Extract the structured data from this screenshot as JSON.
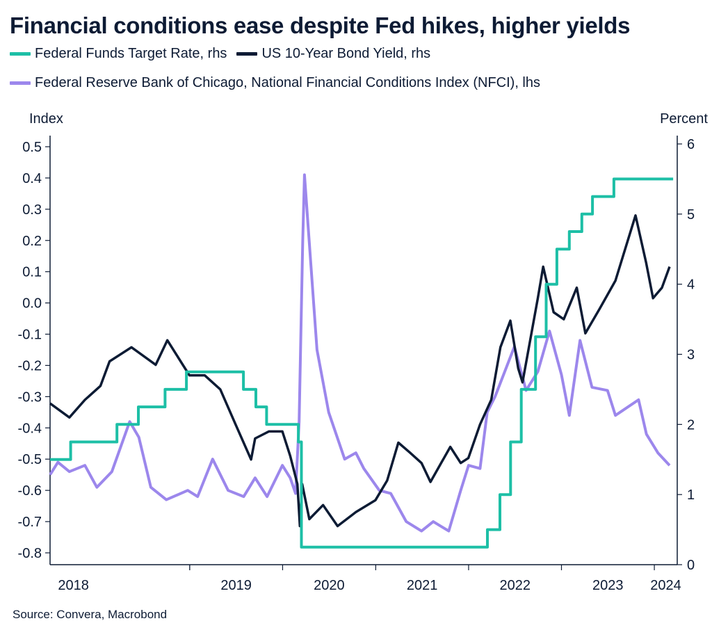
{
  "header": {
    "title": "Financial conditions ease despite Fed hikes, higher yields"
  },
  "footer": {
    "source": "Source: Convera, Macrobond"
  },
  "colors": {
    "fed_funds": "#1dbfa6",
    "us10y": "#0d1b34",
    "nfci": "#9c87ec",
    "text": "#0d1b34"
  },
  "chart_data": {
    "type": "line",
    "title": "Financial conditions ease despite Fed hikes, higher yields",
    "legend_position": "top-left",
    "grid": false,
    "x_axis": {
      "min": "2017-07-01",
      "max": "2024-03-31",
      "tick_labels": [
        "2018",
        "2019",
        "2020",
        "2021",
        "2022",
        "2023",
        "2024"
      ],
      "tick_label_dates": [
        "2018-01-01",
        "2019-01-01",
        "2020-01-01",
        "2021-01-01",
        "2022-01-01",
        "2023-01-01",
        "2024-01-01"
      ]
    },
    "left_axis": {
      "label": "Index",
      "min": -0.8,
      "max": 0.5,
      "ticks": [
        "0.5",
        "0.4",
        "0.3",
        "0.2",
        "0.1",
        "0.0",
        "-0.1",
        "-0.2",
        "-0.3",
        "-0.4",
        "-0.5",
        "-0.6",
        "-0.7",
        "-0.8"
      ]
    },
    "right_axis": {
      "label": "Percent",
      "min": 0,
      "max": 6,
      "ticks": [
        "6",
        "5",
        "4",
        "3",
        "2",
        "1",
        "0"
      ]
    },
    "series": [
      {
        "name": "Federal Funds Target Rate, rhs",
        "axis": "right",
        "step": true,
        "x": [
          "2017-07-01",
          "2017-09-20",
          "2018-03-21",
          "2018-06-13",
          "2018-09-26",
          "2018-12-19",
          "2019-07-31",
          "2019-09-18",
          "2019-10-30",
          "2020-03-03",
          "2020-03-15",
          "2022-03-16",
          "2022-05-04",
          "2022-06-15",
          "2022-07-27",
          "2022-09-21",
          "2022-11-02",
          "2022-12-14",
          "2023-02-01",
          "2023-03-22",
          "2023-05-03",
          "2023-07-26",
          "2024-03-15"
        ],
        "values": [
          1.5,
          1.75,
          2.0,
          2.25,
          2.5,
          2.75,
          2.5,
          2.25,
          2.0,
          1.75,
          0.25,
          0.5,
          1.0,
          1.75,
          2.5,
          3.25,
          4.0,
          4.5,
          4.75,
          5.0,
          5.25,
          5.5,
          5.5
        ]
      },
      {
        "name": "US 10-Year Bond Yield, rhs",
        "axis": "right",
        "x": [
          "2017-07-01",
          "2017-09-15",
          "2017-11-15",
          "2018-01-15",
          "2018-02-20",
          "2018-05-17",
          "2018-08-20",
          "2018-10-05",
          "2018-12-31",
          "2019-03-01",
          "2019-05-01",
          "2019-06-30",
          "2019-08-30",
          "2019-09-15",
          "2019-11-08",
          "2019-12-31",
          "2020-01-31",
          "2020-02-28",
          "2020-03-09",
          "2020-03-18",
          "2020-04-15",
          "2020-06-08",
          "2020-08-04",
          "2020-10-15",
          "2020-12-31",
          "2021-02-15",
          "2021-03-31",
          "2021-05-15",
          "2021-06-30",
          "2021-08-04",
          "2021-10-21",
          "2021-12-01",
          "2021-12-31",
          "2022-02-15",
          "2022-03-31",
          "2022-05-06",
          "2022-06-14",
          "2022-07-15",
          "2022-08-01",
          "2022-08-31",
          "2022-09-30",
          "2022-10-21",
          "2022-12-01",
          "2023-01-10",
          "2023-03-02",
          "2023-04-05",
          "2023-05-31",
          "2023-08-01",
          "2023-10-19",
          "2023-11-30",
          "2023-12-27",
          "2024-01-31",
          "2024-03-01"
        ],
        "values": [
          2.3,
          2.1,
          2.35,
          2.55,
          2.9,
          3.1,
          2.85,
          3.2,
          2.7,
          2.7,
          2.5,
          2.0,
          1.5,
          1.8,
          1.9,
          1.9,
          1.55,
          1.15,
          0.55,
          1.15,
          0.65,
          0.85,
          0.55,
          0.75,
          0.92,
          1.2,
          1.74,
          1.6,
          1.45,
          1.18,
          1.68,
          1.45,
          1.52,
          2.0,
          2.35,
          3.1,
          3.48,
          2.8,
          2.6,
          3.2,
          3.8,
          4.25,
          3.6,
          3.5,
          3.95,
          3.3,
          3.65,
          4.05,
          4.98,
          4.3,
          3.8,
          3.95,
          4.25
        ]
      },
      {
        "name": "Federal Reserve Bank of Chicago, National Financial Conditions Index (NFCI), lhs",
        "axis": "left",
        "x": [
          "2017-07-01",
          "2017-08-01",
          "2017-09-15",
          "2017-11-15",
          "2018-01-01",
          "2018-03-01",
          "2018-05-10",
          "2018-06-15",
          "2018-08-01",
          "2018-10-01",
          "2018-12-24",
          "2019-02-01",
          "2019-04-01",
          "2019-06-01",
          "2019-08-01",
          "2019-09-15",
          "2019-11-01",
          "2019-12-31",
          "2020-01-31",
          "2020-02-21",
          "2020-03-06",
          "2020-03-20",
          "2020-03-27",
          "2020-04-10",
          "2020-05-15",
          "2020-06-30",
          "2020-09-01",
          "2020-10-15",
          "2020-11-15",
          "2021-01-15",
          "2021-03-01",
          "2021-05-01",
          "2021-06-30",
          "2021-08-15",
          "2021-10-15",
          "2021-12-01",
          "2022-01-01",
          "2022-02-15",
          "2022-03-15",
          "2022-04-15",
          "2022-06-30",
          "2022-08-15",
          "2022-09-30",
          "2022-11-15",
          "2023-01-01",
          "2023-02-01",
          "2023-03-15",
          "2023-05-01",
          "2023-07-01",
          "2023-08-01",
          "2023-10-31",
          "2023-12-01",
          "2024-01-15",
          "2024-03-01"
        ],
        "values": [
          -0.55,
          -0.51,
          -0.54,
          -0.52,
          -0.59,
          -0.54,
          -0.38,
          -0.43,
          -0.59,
          -0.63,
          -0.6,
          -0.62,
          -0.5,
          -0.6,
          -0.62,
          -0.56,
          -0.62,
          -0.52,
          -0.56,
          -0.61,
          -0.38,
          0.2,
          0.41,
          0.25,
          -0.15,
          -0.35,
          -0.5,
          -0.48,
          -0.53,
          -0.6,
          -0.61,
          -0.7,
          -0.73,
          -0.7,
          -0.73,
          -0.6,
          -0.52,
          -0.53,
          -0.35,
          -0.3,
          -0.14,
          -0.28,
          -0.22,
          -0.09,
          -0.23,
          -0.36,
          -0.12,
          -0.27,
          -0.28,
          -0.36,
          -0.31,
          -0.42,
          -0.48,
          -0.52
        ]
      }
    ]
  }
}
